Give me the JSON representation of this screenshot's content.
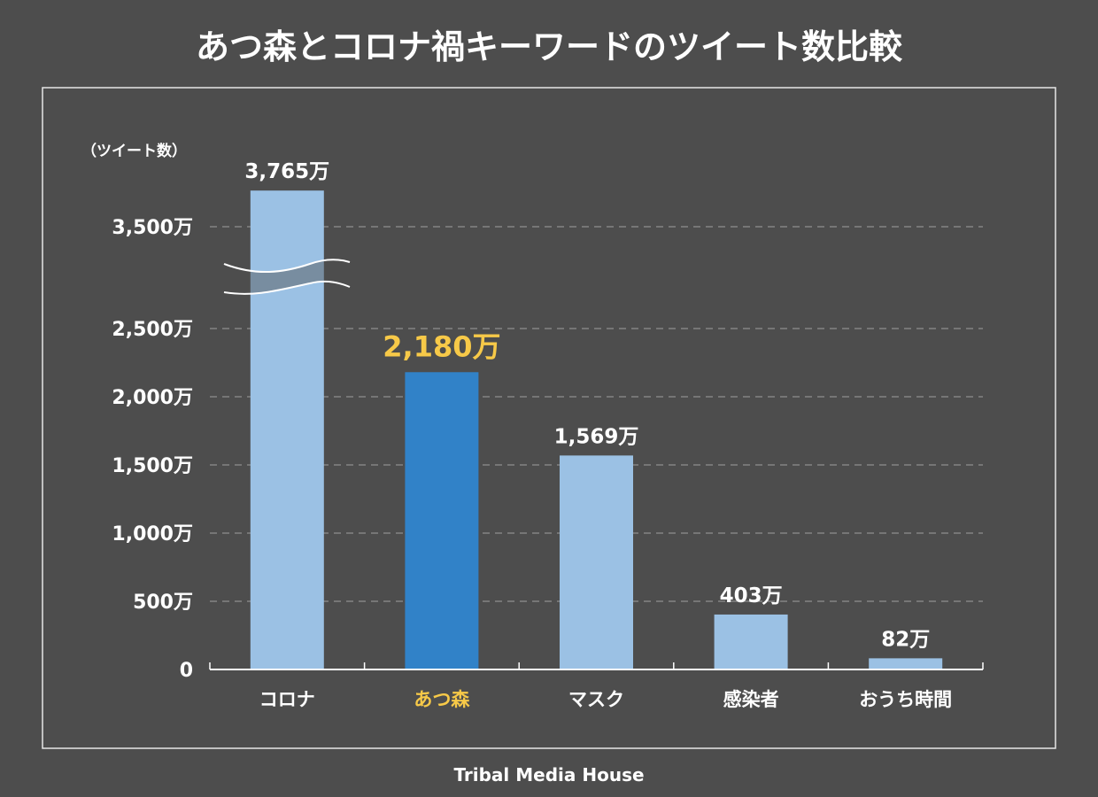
{
  "chart_data": {
    "type": "bar",
    "title": "あつ森とコロナ禍キーワードのツイート数比較",
    "ylabel": "（ツイート数）",
    "categories": [
      "コロナ",
      "あつ森",
      "マスク",
      "感染者",
      "おうち時間"
    ],
    "values": [
      3765,
      2180,
      1569,
      403,
      82
    ],
    "value_labels": [
      "3,765万",
      "2,180万",
      "1,569万",
      "403万",
      "82万"
    ],
    "unit": "万",
    "highlight_index": 1,
    "yticks": [
      0,
      500,
      1000,
      1500,
      2000,
      2500,
      3500
    ],
    "ytick_labels": [
      "0",
      "500万",
      "1,000万",
      "1,500万",
      "2,000万",
      "2,500万",
      "3,500万"
    ],
    "ylim": [
      0,
      3765
    ],
    "axis_break": [
      2500,
      3500
    ],
    "grid": "dashed horizontal",
    "legend": "none",
    "credit": "Tribal Media House",
    "colors": {
      "background": "#4d4d4d",
      "bar": "#9bc1e4",
      "highlight_bar": "#3182c8",
      "highlight_text": "#f7c948",
      "text": "#ffffff",
      "grid": "#a0a0a0"
    }
  }
}
